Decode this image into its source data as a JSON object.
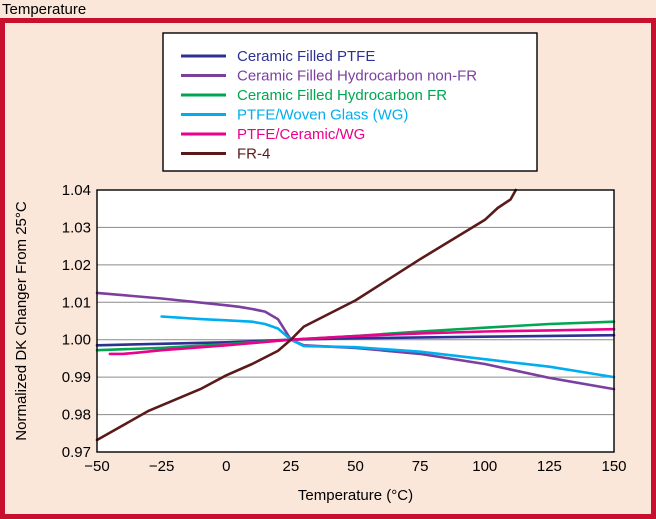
{
  "page": {
    "caption_text": "Temperature",
    "colors": {
      "background": "#fbe6da",
      "border": "#c8102e",
      "plot_background": "#ffffff",
      "grid": "#8a8a8a",
      "axis_text": "#000000"
    }
  },
  "chart_data": {
    "type": "line",
    "title": "",
    "xlabel": "Temperature (°C)",
    "ylabel": "Normalized DK Changer From 25°C",
    "xlim": [
      -50,
      150
    ],
    "ylim": [
      0.97,
      1.04
    ],
    "xticks": [
      -50,
      -25,
      0,
      25,
      50,
      75,
      100,
      125,
      150
    ],
    "xtick_labels": [
      "−50",
      "−25",
      "0",
      "25",
      "50",
      "75",
      "100",
      "125",
      "150"
    ],
    "yticks": [
      0.97,
      0.98,
      0.99,
      1.0,
      1.01,
      1.02,
      1.03,
      1.04
    ],
    "ytick_labels": [
      "0.97",
      "0.98",
      "0.99",
      "1.00",
      "1.01",
      "1.02",
      "1.03",
      "1.04"
    ],
    "grid": "horizontal",
    "legend_position": "top-center",
    "series": [
      {
        "name": "Ceramic Filled PTFE",
        "color": "#2e3192",
        "x": [
          -50,
          0,
          25,
          50,
          100,
          150
        ],
        "y": [
          0.9985,
          0.9993,
          1.0,
          1.0004,
          1.0008,
          1.0012
        ]
      },
      {
        "name": "Ceramic Filled Hydrocarbon non-FR",
        "color": "#7b3f9e",
        "x": [
          -50,
          -25,
          0,
          5,
          10,
          15,
          20,
          25,
          30,
          50,
          75,
          100,
          125,
          150
        ],
        "y": [
          1.0125,
          1.011,
          1.0092,
          1.0088,
          1.0082,
          1.0075,
          1.0055,
          1.0,
          0.9985,
          0.9978,
          0.9962,
          0.9935,
          0.9898,
          0.9868
        ]
      },
      {
        "name": "Ceramic Filled Hydrocarbon FR",
        "color": "#00a651",
        "x": [
          -50,
          -25,
          0,
          25,
          50,
          75,
          100,
          125,
          150
        ],
        "y": [
          0.9972,
          0.9978,
          0.9988,
          1.0,
          1.001,
          1.0022,
          1.0032,
          1.0042,
          1.0048
        ]
      },
      {
        "name": "PTFE/Woven Glass (WG)",
        "color": "#00aeef",
        "x": [
          -25,
          -10,
          0,
          10,
          15,
          20,
          25,
          30,
          50,
          75,
          100,
          125,
          150
        ],
        "y": [
          1.0062,
          1.0055,
          1.0052,
          1.0048,
          1.0042,
          1.003,
          1.0,
          0.9983,
          0.998,
          0.9968,
          0.9948,
          0.9928,
          0.99
        ]
      },
      {
        "name": "PTFE/Ceramic/WG",
        "color": "#ec008c",
        "x": [
          -45,
          -40,
          -35,
          -25,
          0,
          25,
          50,
          75,
          100,
          125,
          150
        ],
        "y": [
          0.9962,
          0.9962,
          0.9965,
          0.9972,
          0.9985,
          1.0,
          1.001,
          1.0017,
          1.0022,
          1.0025,
          1.0028
        ]
      },
      {
        "name": "FR-4",
        "color": "#5b1a1a",
        "x": [
          -50,
          -30,
          -10,
          0,
          10,
          20,
          25,
          30,
          50,
          75,
          100,
          105,
          110,
          112
        ],
        "y": [
          0.9732,
          0.981,
          0.9868,
          0.9905,
          0.9935,
          0.997,
          1.0,
          1.0035,
          1.0105,
          1.0215,
          1.032,
          1.0352,
          1.0375,
          1.0405
        ]
      }
    ]
  }
}
